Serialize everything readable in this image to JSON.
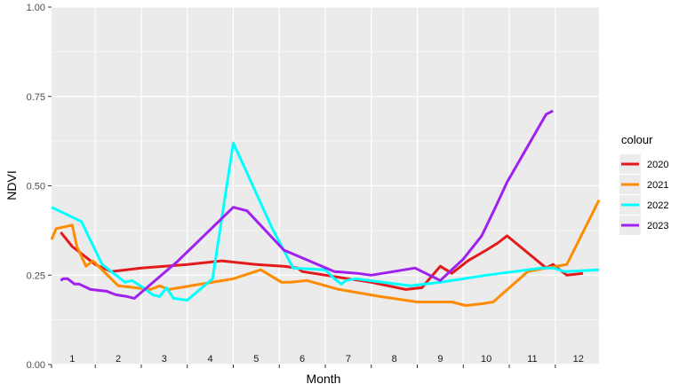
{
  "chart_data": {
    "type": "line",
    "xlabel": "Month",
    "ylabel": "NDVI",
    "x_tick_labels": [
      "1",
      "2",
      "3",
      "4",
      "5",
      "6",
      "7",
      "8",
      "9",
      "10",
      "11",
      "12"
    ],
    "xlim": [
      0.55,
      12.45
    ],
    "ylim": [
      0,
      1
    ],
    "y_ticks": [
      0,
      0.25,
      0.5,
      0.75,
      1
    ],
    "y_tick_labels": [
      "0.00",
      "0.25",
      "0.50",
      "0.75",
      "1.00"
    ],
    "grid": true,
    "background": "#ebebeb",
    "legend": {
      "title": "colour",
      "position": "right"
    },
    "series": [
      {
        "name": "2020",
        "color": "#e31a1c",
        "points": [
          [
            0.75,
            0.37
          ],
          [
            1.0,
            0.33
          ],
          [
            1.5,
            0.28
          ],
          [
            1.85,
            0.26
          ],
          [
            2.5,
            0.27
          ],
          [
            3.5,
            0.28
          ],
          [
            4.25,
            0.29
          ],
          [
            5.0,
            0.28
          ],
          [
            5.6,
            0.275
          ],
          [
            5.9,
            0.27
          ],
          [
            6.0,
            0.26
          ],
          [
            7.0,
            0.24
          ],
          [
            7.5,
            0.23
          ],
          [
            8.25,
            0.21
          ],
          [
            8.6,
            0.215
          ],
          [
            9.0,
            0.275
          ],
          [
            9.25,
            0.255
          ],
          [
            9.6,
            0.29
          ],
          [
            10.0,
            0.32
          ],
          [
            10.25,
            0.34
          ],
          [
            10.45,
            0.36
          ],
          [
            11.3,
            0.27
          ],
          [
            11.45,
            0.28
          ],
          [
            11.75,
            0.25
          ],
          [
            12.1,
            0.255
          ]
        ]
      },
      {
        "name": "2021",
        "color": "#ff8c00",
        "points": [
          [
            0.55,
            0.35
          ],
          [
            0.65,
            0.38
          ],
          [
            1.0,
            0.39
          ],
          [
            1.1,
            0.33
          ],
          [
            1.3,
            0.275
          ],
          [
            1.45,
            0.29
          ],
          [
            2.0,
            0.22
          ],
          [
            2.7,
            0.21
          ],
          [
            2.9,
            0.22
          ],
          [
            3.1,
            0.21
          ],
          [
            4.5,
            0.24
          ],
          [
            5.1,
            0.265
          ],
          [
            5.55,
            0.23
          ],
          [
            5.75,
            0.23
          ],
          [
            6.1,
            0.235
          ],
          [
            6.8,
            0.21
          ],
          [
            7.7,
            0.19
          ],
          [
            8.5,
            0.175
          ],
          [
            8.75,
            0.175
          ],
          [
            9.25,
            0.175
          ],
          [
            9.55,
            0.165
          ],
          [
            9.9,
            0.17
          ],
          [
            10.15,
            0.175
          ],
          [
            10.9,
            0.26
          ],
          [
            11.3,
            0.27
          ],
          [
            11.75,
            0.28
          ],
          [
            12.45,
            0.46
          ]
        ]
      },
      {
        "name": "2022",
        "color": "#00ffff",
        "points": [
          [
            0.55,
            0.44
          ],
          [
            1.2,
            0.4
          ],
          [
            1.65,
            0.28
          ],
          [
            1.95,
            0.25
          ],
          [
            2.15,
            0.23
          ],
          [
            2.3,
            0.235
          ],
          [
            2.6,
            0.21
          ],
          [
            2.75,
            0.195
          ],
          [
            2.9,
            0.19
          ],
          [
            3.05,
            0.215
          ],
          [
            3.2,
            0.185
          ],
          [
            3.5,
            0.18
          ],
          [
            4.05,
            0.24
          ],
          [
            4.5,
            0.62
          ],
          [
            5.35,
            0.38
          ],
          [
            5.8,
            0.27
          ],
          [
            6.5,
            0.265
          ],
          [
            6.7,
            0.24
          ],
          [
            6.85,
            0.225
          ],
          [
            6.95,
            0.235
          ],
          [
            7.15,
            0.24
          ],
          [
            8.35,
            0.22
          ],
          [
            9.0,
            0.23
          ],
          [
            10.0,
            0.25
          ],
          [
            11.2,
            0.27
          ],
          [
            11.45,
            0.27
          ],
          [
            11.7,
            0.26
          ],
          [
            12.45,
            0.265
          ]
        ]
      },
      {
        "name": "2023",
        "color": "#a020f0",
        "points": [
          [
            0.75,
            0.235
          ],
          [
            0.8,
            0.24
          ],
          [
            0.9,
            0.24
          ],
          [
            1.0,
            0.23
          ],
          [
            1.05,
            0.225
          ],
          [
            1.15,
            0.225
          ],
          [
            1.4,
            0.21
          ],
          [
            1.75,
            0.205
          ],
          [
            1.95,
            0.195
          ],
          [
            2.2,
            0.19
          ],
          [
            2.35,
            0.185
          ],
          [
            3.3,
            0.29
          ],
          [
            4.5,
            0.44
          ],
          [
            4.8,
            0.43
          ],
          [
            5.6,
            0.32
          ],
          [
            6.7,
            0.26
          ],
          [
            7.2,
            0.255
          ],
          [
            7.5,
            0.25
          ],
          [
            8.45,
            0.27
          ],
          [
            9.0,
            0.235
          ],
          [
            9.5,
            0.295
          ],
          [
            9.9,
            0.36
          ],
          [
            10.2,
            0.44
          ],
          [
            10.45,
            0.51
          ],
          [
            11.3,
            0.7
          ],
          [
            11.45,
            0.71
          ]
        ]
      }
    ]
  }
}
